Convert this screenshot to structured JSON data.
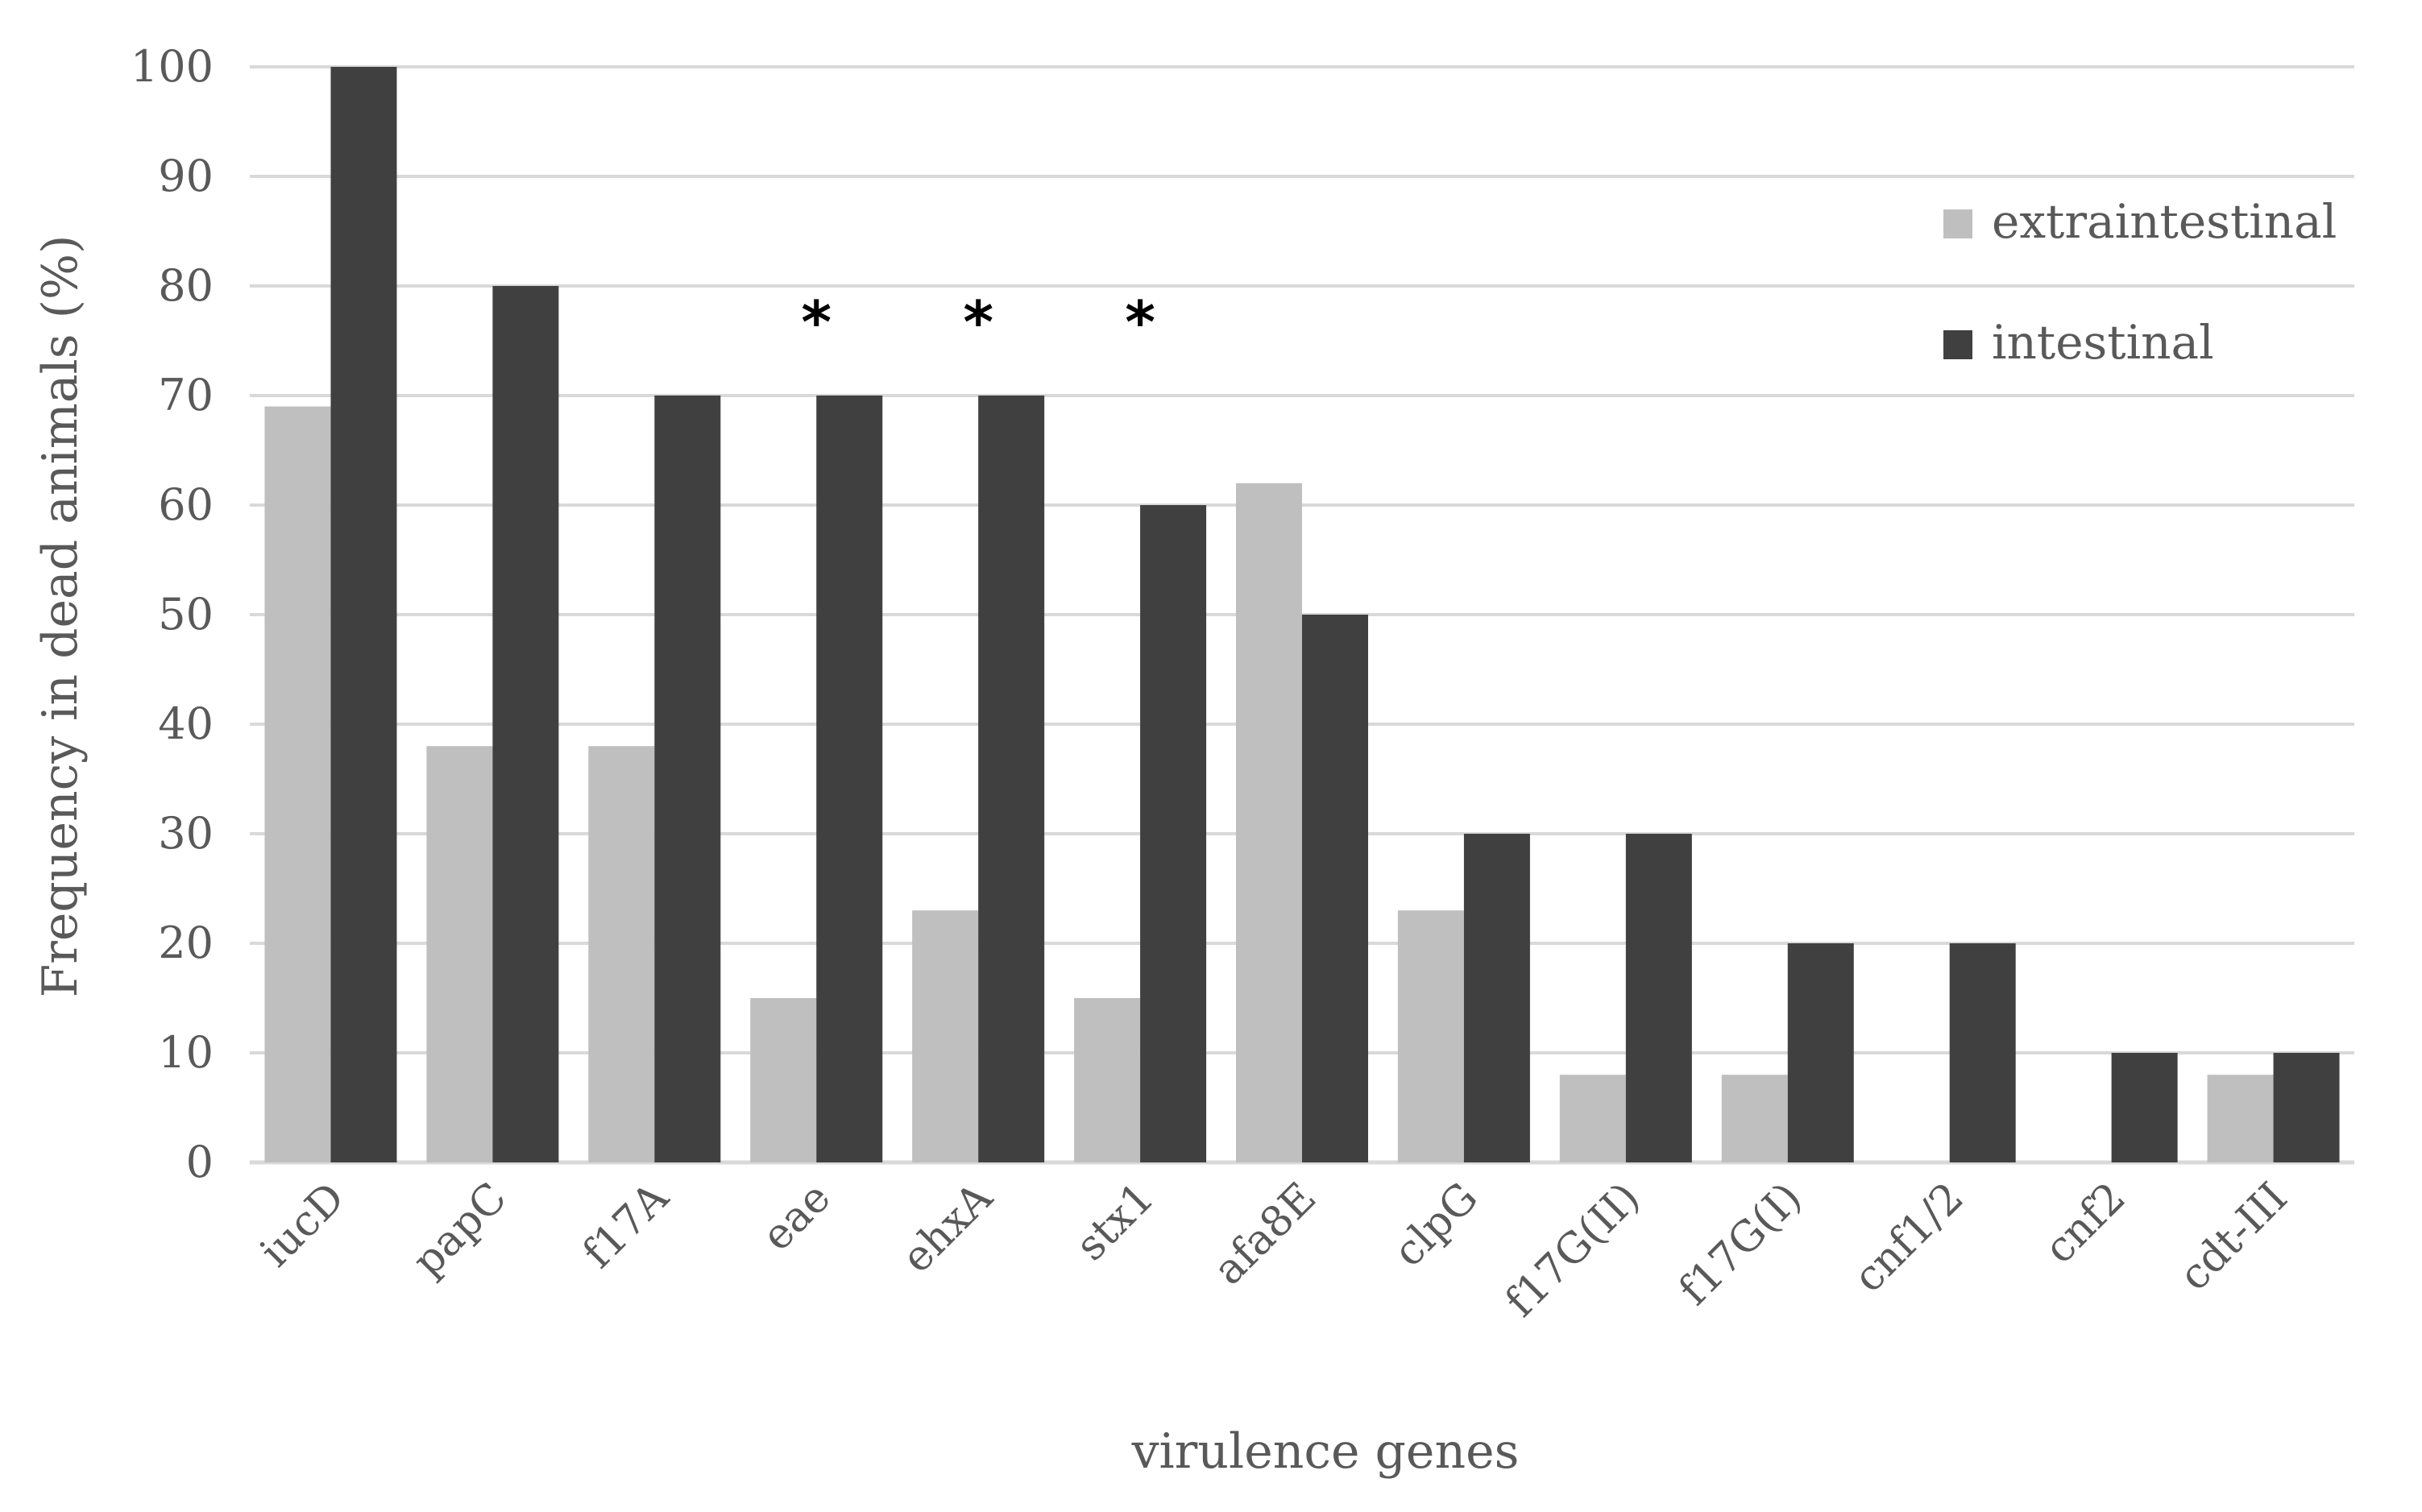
{
  "chart_data": {
    "type": "bar",
    "title": "",
    "xlabel": "virulence genes",
    "ylabel": "Frequency in dead animals (%)",
    "ylim": [
      0,
      100
    ],
    "yticks": [
      0,
      10,
      20,
      30,
      40,
      50,
      60,
      70,
      80,
      90,
      100
    ],
    "grid": true,
    "legend_position": "top-right",
    "categories": [
      "iucD",
      "papC",
      "f17A",
      "eae",
      "ehxA",
      "stx1",
      "afa8E",
      "clpG",
      "f17G(II)",
      "f17G(I)",
      "cnf1/2",
      "cnf2",
      "cdt-III"
    ],
    "series": [
      {
        "name": "extraintestinal",
        "color": "#bfbfbf",
        "values": [
          69,
          38,
          38,
          15,
          23,
          15,
          62,
          23,
          8,
          8,
          0,
          0,
          8
        ]
      },
      {
        "name": "intestinal",
        "color": "#404040",
        "values": [
          100,
          80,
          70,
          70,
          70,
          60,
          50,
          30,
          30,
          20,
          20,
          10,
          10
        ]
      }
    ],
    "annotations": [
      {
        "category": "eae",
        "text": "*"
      },
      {
        "category": "ehxA",
        "text": "*"
      },
      {
        "category": "stx1",
        "text": "*"
      }
    ]
  }
}
